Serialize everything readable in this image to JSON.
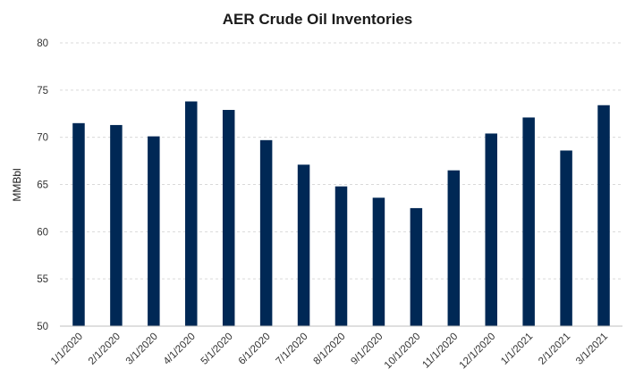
{
  "chart_data": {
    "type": "bar",
    "title": "AER Crude Oil Inventories",
    "xlabel": "",
    "ylabel": "MMBbl",
    "ylim": [
      50,
      80
    ],
    "yticks": [
      50,
      55,
      60,
      65,
      70,
      75,
      80
    ],
    "grid": true,
    "legend": "none",
    "bar_color": "#002855",
    "categories": [
      "1/1/2020",
      "2/1/2020",
      "3/1/2020",
      "4/1/2020",
      "5/1/2020",
      "6/1/2020",
      "7/1/2020",
      "8/1/2020",
      "9/1/2020",
      "10/1/2020",
      "11/1/2020",
      "12/1/2020",
      "1/1/2021",
      "2/1/2021",
      "3/1/2021"
    ],
    "values": [
      71.5,
      71.3,
      70.1,
      73.8,
      72.9,
      69.7,
      67.1,
      64.8,
      63.6,
      62.5,
      66.5,
      70.4,
      72.1,
      68.6,
      73.4
    ]
  }
}
